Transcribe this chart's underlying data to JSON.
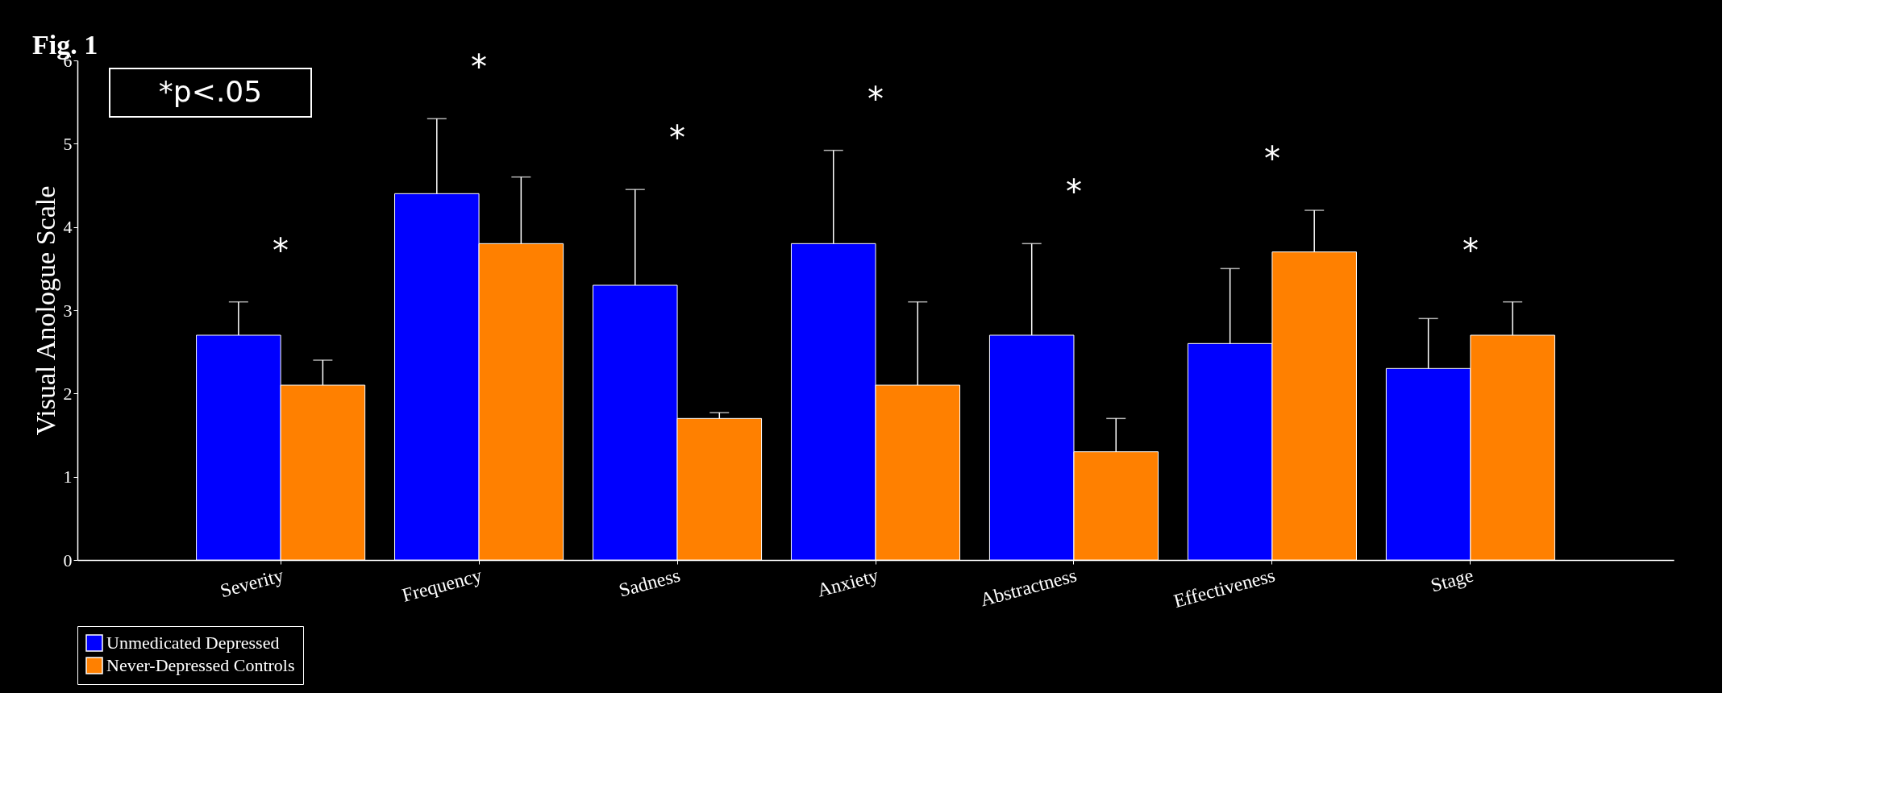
{
  "chart_data": {
    "type": "bar",
    "title": "Fig. 1",
    "ylabel": "Visual Anologue Scale",
    "categories": [
      "Severity",
      "Frequency",
      "Sadness",
      "Anxiety",
      "Abstractness",
      "Effectiveness",
      "Stage"
    ],
    "series": [
      {
        "name": "Unmedicated Depressed",
        "color": "#0000ff",
        "values": [
          2.7,
          4.4,
          3.3,
          3.8,
          2.7,
          2.6,
          2.3
        ],
        "errors": [
          [
            2.7,
            3.1
          ],
          [
            4.4,
            5.3
          ],
          [
            3.3,
            4.45
          ],
          [
            3.8,
            4.92
          ],
          [
            2.7,
            3.8
          ],
          [
            2.6,
            3.5
          ],
          [
            2.3,
            2.9
          ]
        ]
      },
      {
        "name": "Never-Depressed Controls",
        "color": "#ff8000",
        "values": [
          2.1,
          3.8,
          1.7,
          2.1,
          1.3,
          3.7,
          2.7
        ],
        "errors": [
          [
            2.1,
            2.4
          ],
          [
            3.8,
            4.6
          ],
          [
            1.7,
            1.77
          ],
          [
            2.1,
            3.1
          ],
          [
            1.3,
            1.7
          ],
          [
            3.7,
            4.2
          ],
          [
            2.7,
            3.1
          ]
        ]
      }
    ],
    "ylim": [
      0,
      6
    ],
    "yticks": [
      0,
      1,
      2,
      3,
      4,
      5,
      6
    ],
    "grid": false,
    "legend": "bottom",
    "annotations": [
      "*p<.05",
      "*",
      "*",
      "*",
      "*",
      "*",
      "*",
      "*"
    ]
  }
}
